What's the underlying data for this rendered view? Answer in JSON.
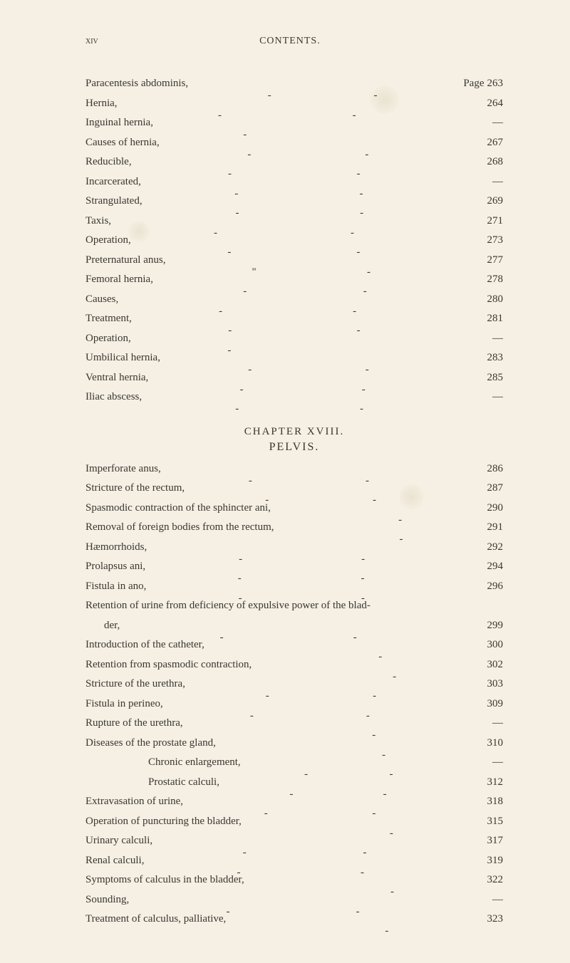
{
  "header": {
    "page_num": "xiv",
    "title": "CONTENTS."
  },
  "section1": [
    {
      "label": "Paracentesis abdominis,",
      "page": "263",
      "page_prefix": "Page",
      "mid": "dash",
      "mid2": "dash"
    },
    {
      "label": "Hernia,",
      "page": "264",
      "mid": "dash",
      "mid2": "dash"
    },
    {
      "label": "Inguinal hernia,",
      "page": "—",
      "mid": "dash"
    },
    {
      "label": "Causes of hernia,",
      "page": "267",
      "mid": "dash",
      "mid2": "dash"
    },
    {
      "label": "Reducible,",
      "page": "268",
      "mid": "dash",
      "mid2": "dash"
    },
    {
      "label": "Incarcerated,",
      "page": "—",
      "mid": "dash",
      "mid2": "dash"
    },
    {
      "label": "Strangulated,",
      "page": "269",
      "mid": "dash",
      "mid2": "dash"
    },
    {
      "label": "Taxis,",
      "page": "271",
      "mid": "dash",
      "mid2": "dash"
    },
    {
      "label": "Operation,",
      "page": "273",
      "mid": "dash",
      "mid2": "dash"
    },
    {
      "label": "Preternatural anus,",
      "page": "277",
      "mid": "dash-quote",
      "mid2": "dash"
    },
    {
      "label": "Femoral hernia,",
      "page": "278",
      "mid": "dash",
      "mid2": "dash"
    },
    {
      "label": "Causes,",
      "page": "280",
      "mid": "dash",
      "mid2": "dash"
    },
    {
      "label": "Treatment,",
      "page": "281",
      "mid": "dash",
      "mid2": "dash"
    },
    {
      "label": "Operation,",
      "page": "—",
      "mid": "dash"
    },
    {
      "label": "Umbilical hernia,",
      "page": "283",
      "mid": "dash",
      "mid2": "dash"
    },
    {
      "label": "Ventral hernia,",
      "page": "285",
      "mid": "dash",
      "mid2": "dash"
    },
    {
      "label": "Iliac abscess,",
      "page": "—",
      "mid": "dash",
      "mid2": "dash"
    }
  ],
  "chapter": {
    "heading": "CHAPTER XVIII.",
    "sub": "PELVIS."
  },
  "section2": [
    {
      "label": "Imperforate anus,",
      "page": "286",
      "mid": "dash",
      "mid2": "dash"
    },
    {
      "label": "Stricture of the rectum,",
      "page": "287",
      "mid": "dash",
      "mid2": "dash"
    },
    {
      "label": "Spasmodic contraction of the sphincter ani,",
      "page": "290",
      "mid2": "dash"
    },
    {
      "label": "Removal of foreign bodies from the rectum,",
      "page": "291",
      "mid2": "dash"
    },
    {
      "label": "Hæmorrhoids,",
      "page": "292",
      "mid": "dash",
      "mid2": "dash"
    },
    {
      "label": "Prolapsus ani,",
      "page": "294",
      "mid": "dash",
      "mid2": "dash"
    },
    {
      "label": "Fistula in ano,",
      "page": "296",
      "mid": "dash",
      "mid2": "dash"
    },
    {
      "label": "Retention of urine from deficiency of expulsive power of the blad-",
      "page": ""
    },
    {
      "label": "der,",
      "page": "299",
      "indent": "indent-1",
      "mid": "dash",
      "mid2": "dash"
    },
    {
      "label": "Introduction of the catheter,",
      "page": "300",
      "mid2": "dash"
    },
    {
      "label": "Retention from spasmodic contraction,",
      "page": "302",
      "mid2": "dash"
    },
    {
      "label": "Stricture of the urethra,",
      "page": "303",
      "mid": "dash",
      "mid2": "dash"
    },
    {
      "label": "Fistula in perineo,",
      "page": "309",
      "mid": "dash",
      "mid2": "dash"
    },
    {
      "label": "Rupture of the urethra,",
      "page": "—",
      "mid2": "dash"
    },
    {
      "label": "Diseases of the prostate gland,",
      "page": "310",
      "mid2": "dash"
    },
    {
      "label": "Chronic enlargement,",
      "page": "—",
      "indent": "indent-2",
      "mid": "dash",
      "mid2": "dash"
    },
    {
      "label": "Prostatic calculi,",
      "page": "312",
      "indent": "indent-2",
      "mid": "dash",
      "mid2": "dash"
    },
    {
      "label": "Extravasation of urine,",
      "page": "318",
      "mid": "dash",
      "mid2": "dash"
    },
    {
      "label": "Operation of puncturing the bladder,",
      "page": "315",
      "mid2": "dash"
    },
    {
      "label": "Urinary calculi,",
      "page": "317",
      "mid": "dash",
      "mid2": "dash"
    },
    {
      "label": "Renal calculi,",
      "page": "319",
      "mid": "dash",
      "mid2": "dash"
    },
    {
      "label": "Symptoms of calculus in the bladder,",
      "page": "322",
      "mid2": "dash"
    },
    {
      "label": "Sounding,",
      "page": "—",
      "mid": "dash",
      "mid2": "dash"
    },
    {
      "label": "Treatment of calculus, palliative,",
      "page": "323",
      "mid2": "dash"
    }
  ],
  "style": {
    "background_color": "#f5f0e3",
    "text_color": "#3a3632",
    "font_family": "Georgia, Times New Roman, serif",
    "body_width": 800,
    "body_height": 1352,
    "row_fontsize": 15,
    "row_lineheight": 1.85,
    "header_fontsize": 14
  }
}
